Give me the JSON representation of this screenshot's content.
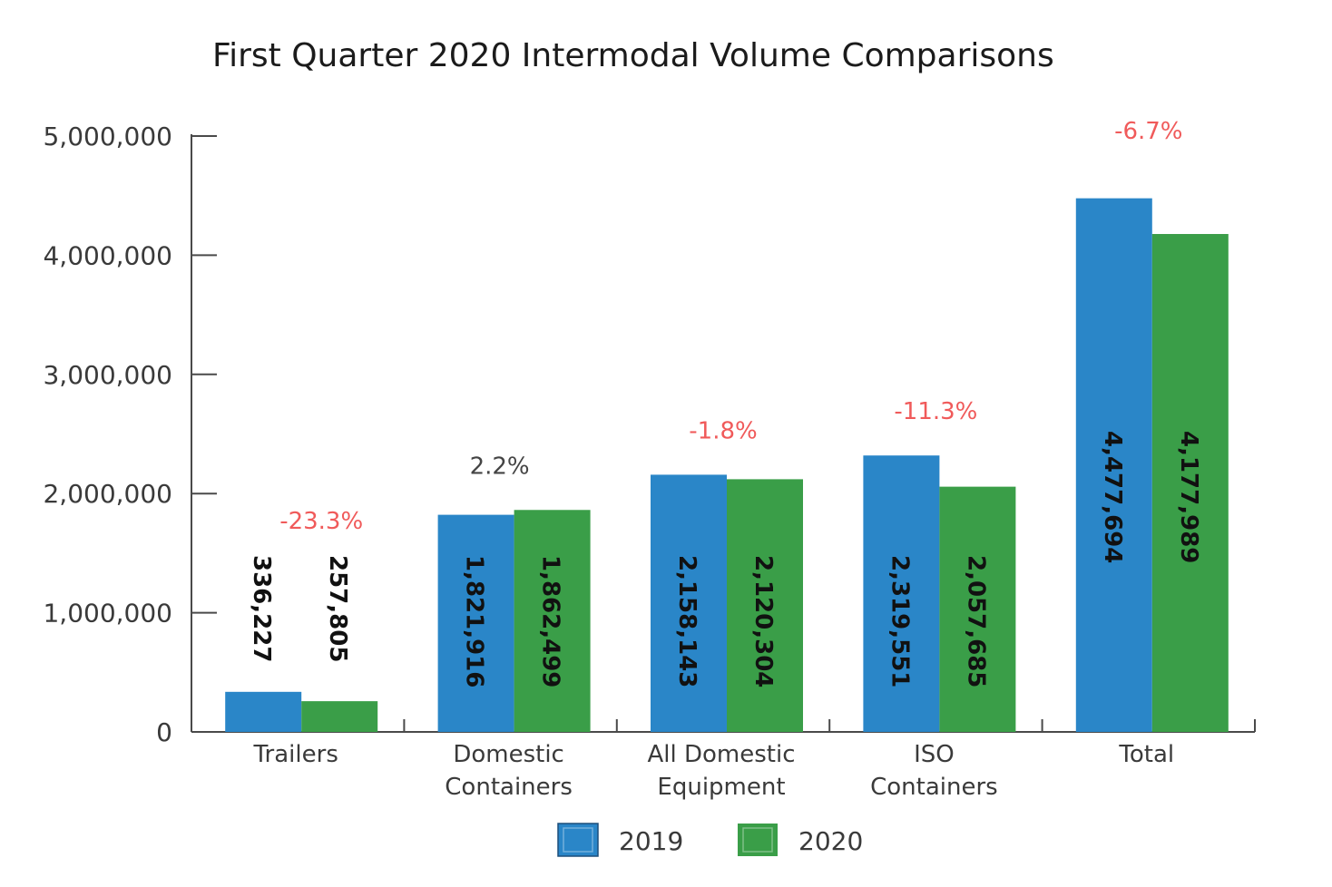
{
  "chart_data": {
    "type": "bar",
    "title": "First Quarter 2020 Intermodal Volume Comparisons",
    "categories": [
      [
        "Trailers"
      ],
      [
        "Domestic",
        "Containers"
      ],
      [
        "All Domestic",
        "Equipment"
      ],
      [
        "ISO",
        "Containers"
      ],
      [
        "Total"
      ]
    ],
    "series": [
      {
        "name": "2019",
        "color": "#2a86c8",
        "values": [
          336227,
          1821916,
          2158143,
          2319551,
          4477694
        ],
        "labels": [
          "336,227",
          "1,821,916",
          "2,158,143",
          "2,319,551",
          "4,477,694"
        ]
      },
      {
        "name": "2020",
        "color": "#3a9e48",
        "values": [
          257805,
          1862499,
          2120304,
          2057685,
          4177989
        ],
        "labels": [
          "257,805",
          "1,862,499",
          "2,120,304",
          "2,057,685",
          "4,177,989"
        ]
      }
    ],
    "changes": [
      {
        "text": "-23.3%",
        "color": "#f05a5a"
      },
      {
        "text": "2.2%",
        "color": "#444444"
      },
      {
        "text": "-1.8%",
        "color": "#f05a5a"
      },
      {
        "text": "-11.3%",
        "color": "#f05a5a"
      },
      {
        "text": "-6.7%",
        "color": "#f05a5a"
      }
    ],
    "ylim": [
      0,
      5000000
    ],
    "yticks": [
      0,
      1000000,
      2000000,
      3000000,
      4000000,
      5000000
    ],
    "ytick_labels": [
      "0",
      "1,000,000",
      "2,000,000",
      "3,000,000",
      "4,000,000",
      "5,000,000"
    ],
    "xlabel": "",
    "ylabel": "",
    "grid": false,
    "legend": "bottom-center"
  }
}
